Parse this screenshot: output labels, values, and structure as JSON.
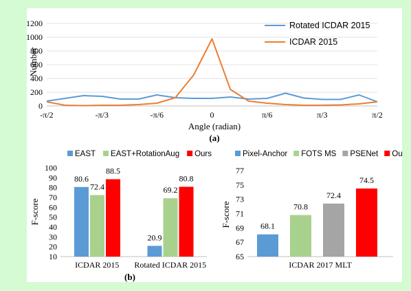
{
  "chart_data": [
    {
      "type": "line",
      "panel_label": "(a)",
      "xlabel": "Angle (radian)",
      "ylabel": "Number",
      "ylim": [
        0,
        1200
      ],
      "yticks": [
        "0",
        "200",
        "400",
        "600",
        "800",
        "1000",
        "1200"
      ],
      "xtick_labels": [
        "-π/2",
        "-π/3",
        "-π/6",
        "0",
        "π/6",
        "π/3",
        "π/2"
      ],
      "x": [
        -18,
        -16,
        -14,
        -12,
        -10,
        -8,
        -6,
        -4,
        -2,
        0,
        2,
        4,
        6,
        8,
        10,
        12,
        14,
        16,
        18
      ],
      "legend_position": "top-right",
      "grid": "horizontal",
      "series": [
        {
          "name": "Rotated ICDAR 2015",
          "color": "#5b9bd5",
          "values": [
            70,
            110,
            150,
            140,
            100,
            100,
            160,
            120,
            110,
            110,
            130,
            100,
            110,
            185,
            115,
            95,
            95,
            160,
            60
          ]
        },
        {
          "name": "ICDAR 2015",
          "color": "#ed7d31",
          "values": [
            60,
            10,
            5,
            10,
            10,
            20,
            40,
            120,
            450,
            975,
            240,
            70,
            40,
            20,
            10,
            10,
            15,
            30,
            60
          ]
        }
      ]
    },
    {
      "type": "bar",
      "panel_label": "(b)",
      "ylabel": "F-score",
      "ylim": [
        10,
        100
      ],
      "yticks": [
        "10",
        "20",
        "30",
        "40",
        "50",
        "60",
        "70",
        "80",
        "90",
        "100"
      ],
      "categories": [
        "ICDAR 2015",
        "Rotated ICDAR 2015"
      ],
      "legend_position": "top",
      "series": [
        {
          "name": "EAST",
          "color": "#5b9bd5",
          "values": [
            80.6,
            20.9
          ],
          "labels": [
            "80.6",
            "20.9"
          ]
        },
        {
          "name": "EAST+RotationAug",
          "color": "#a9d18e",
          "values": [
            72.4,
            69.2
          ],
          "labels": [
            "72.4",
            "69.2"
          ]
        },
        {
          "name": "Ours",
          "color": "#ff0000",
          "values": [
            88.5,
            80.8
          ],
          "labels": [
            "88.5",
            "80.8"
          ]
        }
      ]
    },
    {
      "type": "bar",
      "ylabel": "F-score",
      "ylim": [
        65,
        77
      ],
      "yticks": [
        "65",
        "67",
        "69",
        "71",
        "73",
        "75",
        "77"
      ],
      "categories": [
        "ICDAR 2017 MLT"
      ],
      "legend_position": "top",
      "series": [
        {
          "name": "Pixel-Anchor",
          "color": "#5b9bd5",
          "values": [
            68.1
          ],
          "labels": [
            "68.1"
          ]
        },
        {
          "name": "FOTS MS",
          "color": "#a9d18e",
          "values": [
            70.8
          ],
          "labels": [
            "70.8"
          ]
        },
        {
          "name": "PSENet",
          "color": "#a5a5a5",
          "values": [
            72.4
          ],
          "labels": [
            "72.4"
          ]
        },
        {
          "name": "Ours",
          "color": "#ff0000",
          "values": [
            74.5
          ],
          "labels": [
            "74.5"
          ]
        }
      ]
    }
  ]
}
